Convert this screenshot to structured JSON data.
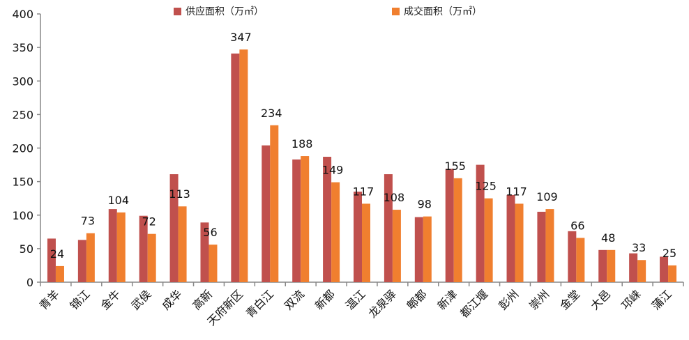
{
  "chart_data": {
    "type": "bar",
    "categories": [
      "青羊",
      "锦江",
      "金牛",
      "武侯",
      "成华",
      "高新",
      "天府新区",
      "青白江",
      "双流",
      "新都",
      "温江",
      "龙泉驿",
      "郫都",
      "新津",
      "都江堰",
      "彭州",
      "崇州",
      "金堂",
      "大邑",
      "邛崃",
      "蒲江"
    ],
    "series": [
      {
        "name": "供应面积（万㎡）",
        "color": "#C0504D",
        "values": [
          65,
          63,
          109,
          99,
          161,
          89,
          341,
          204,
          183,
          187,
          135,
          161,
          97,
          169,
          175,
          130,
          105,
          76,
          48,
          43,
          38
        ]
      },
      {
        "name": "成交面积（万㎡）",
        "color": "#F07F2F",
        "values": [
          24,
          73,
          104,
          72,
          113,
          56,
          347,
          234,
          188,
          149,
          117,
          108,
          98,
          155,
          125,
          117,
          109,
          66,
          48,
          33,
          25
        ],
        "data_labels": true
      }
    ],
    "ylim": [
      0,
      400
    ],
    "yticks": [
      0,
      50,
      100,
      150,
      200,
      250,
      300,
      350,
      400
    ],
    "grid": false,
    "legend": "top"
  }
}
